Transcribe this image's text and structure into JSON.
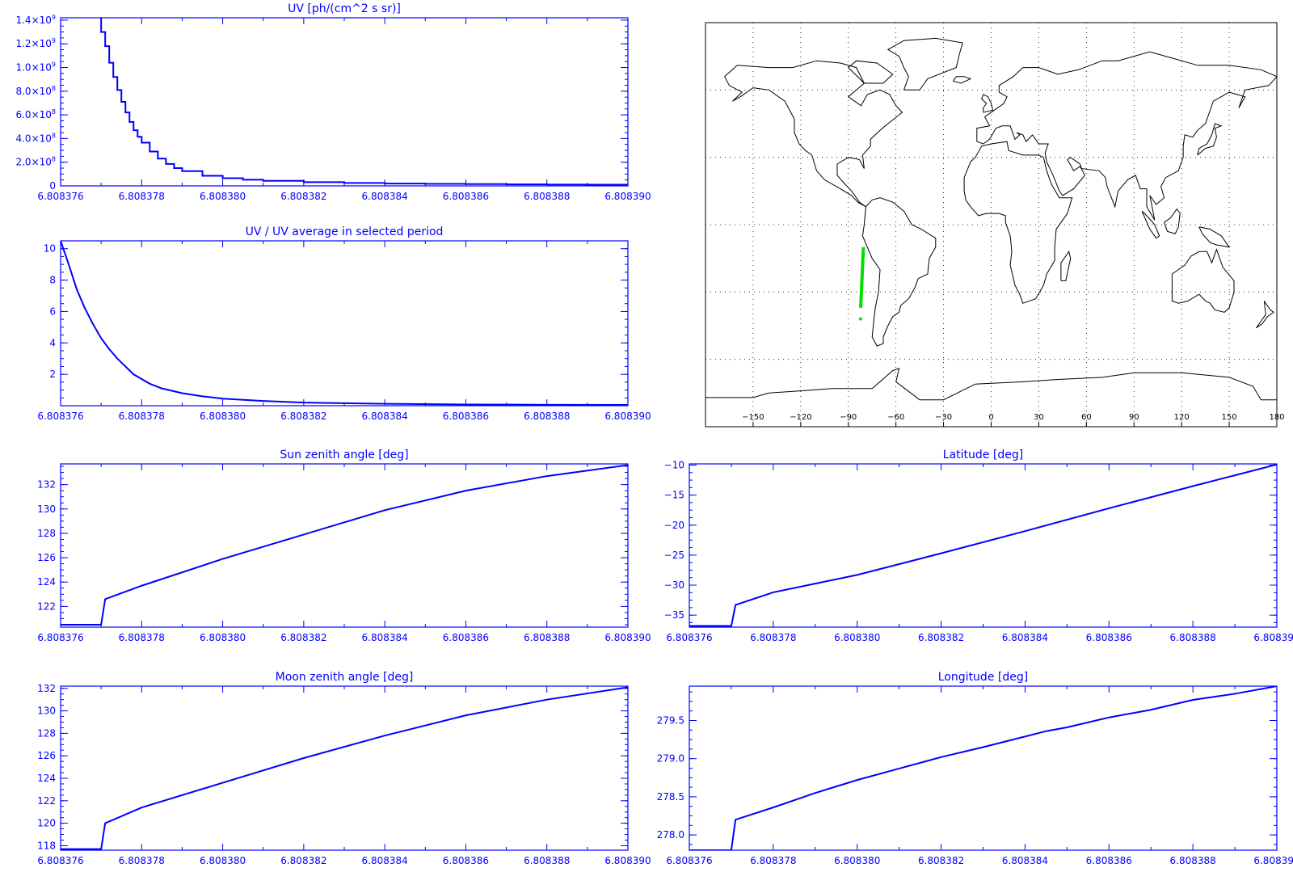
{
  "colors": {
    "axis": "#0000ff",
    "line": "#0000ff",
    "map": "#000000",
    "track": "#00e000",
    "grid": "#000000"
  },
  "x_tick_labels": [
    "6.808376",
    "6.808378",
    "6.808380",
    "6.808382",
    "6.808384",
    "6.808386",
    "6.808388",
    "6.808390"
  ],
  "chart_data": [
    {
      "id": "uv",
      "type": "line",
      "title": "UV [ph/(cm^2 s sr)]",
      "xlim": [
        6.808376,
        6.80839
      ],
      "ylim": [
        0,
        1420000000.0
      ],
      "yticks": [
        0,
        200000000.0,
        400000000.0,
        600000000.0,
        800000000.0,
        1000000000.0,
        1200000000.0,
        1400000000.0
      ],
      "ytick_labels": [
        {
          "mantissa": "0",
          "exp": ""
        },
        {
          "mantissa": "2.0×10",
          "exp": "8"
        },
        {
          "mantissa": "4.0×10",
          "exp": "8"
        },
        {
          "mantissa": "6.0×10",
          "exp": "8"
        },
        {
          "mantissa": "8.0×10",
          "exp": "8"
        },
        {
          "mantissa": "1.0×10",
          "exp": "9"
        },
        {
          "mantissa": "1.2×10",
          "exp": "9"
        },
        {
          "mantissa": "1.4×10",
          "exp": "9"
        }
      ],
      "steps": true,
      "x": [
        6.808377,
        6.8083771,
        6.8083772,
        6.8083773,
        6.8083774,
        6.8083775,
        6.8083776,
        6.8083777,
        6.8083778,
        6.8083779,
        6.808378,
        6.8083782,
        6.8083784,
        6.8083786,
        6.8083788,
        6.808379,
        6.8083795,
        6.80838,
        6.8083805,
        6.808381,
        6.808382,
        6.808383,
        6.808384,
        6.808385,
        6.808386,
        6.808387,
        6.808388,
        6.808389,
        6.80839
      ],
      "y": [
        1300000000.0,
        1180000000.0,
        1040000000.0,
        920000000.0,
        810000000.0,
        710000000.0,
        620000000.0,
        540000000.0,
        470000000.0,
        415000000.0,
        365000000.0,
        290000000.0,
        230000000.0,
        185000000.0,
        150000000.0,
        125000000.0,
        85000000.0,
        65000000.0,
        52000000.0,
        43000000.0,
        32000000.0,
        25000000.0,
        20000000.0,
        17000000.0,
        15000000.0,
        13000000.0,
        11000000.0,
        10000000.0,
        9000000.0
      ]
    },
    {
      "id": "uvratio",
      "type": "line",
      "title": "UV / UV average in selected period",
      "xlim": [
        6.808376,
        6.80839
      ],
      "ylim": [
        0,
        10.5
      ],
      "yticks": [
        2,
        4,
        6,
        8,
        10
      ],
      "ytick_labels": [
        {
          "mantissa": "2",
          "exp": ""
        },
        {
          "mantissa": "4",
          "exp": ""
        },
        {
          "mantissa": "6",
          "exp": ""
        },
        {
          "mantissa": "8",
          "exp": ""
        },
        {
          "mantissa": "10",
          "exp": ""
        }
      ],
      "steps": false,
      "x": [
        6.808376,
        6.8083762,
        6.8083764,
        6.8083766,
        6.8083768,
        6.808377,
        6.8083772,
        6.8083774,
        6.8083776,
        6.8083778,
        6.808378,
        6.8083782,
        6.8083785,
        6.808379,
        6.8083795,
        6.80838,
        6.808381,
        6.808382,
        6.808384,
        6.808386,
        6.808388,
        6.80839
      ],
      "y": [
        10.5,
        9.0,
        7.4,
        6.2,
        5.2,
        4.3,
        3.6,
        3.0,
        2.5,
        2.0,
        1.7,
        1.4,
        1.1,
        0.8,
        0.6,
        0.45,
        0.3,
        0.2,
        0.12,
        0.08,
        0.06,
        0.05
      ]
    },
    {
      "id": "sza",
      "type": "line",
      "title": "Sun zenith angle [deg]",
      "xlim": [
        6.808376,
        6.80839
      ],
      "ylim": [
        120.3,
        133.7
      ],
      "yticks": [
        122,
        124,
        126,
        128,
        130,
        132
      ],
      "ytick_labels": [
        {
          "mantissa": "122",
          "exp": ""
        },
        {
          "mantissa": "124",
          "exp": ""
        },
        {
          "mantissa": "126",
          "exp": ""
        },
        {
          "mantissa": "128",
          "exp": ""
        },
        {
          "mantissa": "130",
          "exp": ""
        },
        {
          "mantissa": "132",
          "exp": ""
        }
      ],
      "steps": false,
      "x": [
        6.808376,
        6.808377,
        6.8083771,
        6.808378,
        6.80838,
        6.808382,
        6.808384,
        6.808386,
        6.808388,
        6.80839
      ],
      "y": [
        120.5,
        120.5,
        122.6,
        123.7,
        125.9,
        127.9,
        129.9,
        131.5,
        132.7,
        133.6
      ]
    },
    {
      "id": "lat",
      "type": "line",
      "title": "Latitude [deg]",
      "xlim": [
        6.808376,
        6.80839
      ],
      "ylim": [
        -37.0,
        -9.8
      ],
      "yticks": [
        -35,
        -30,
        -25,
        -20,
        -15,
        -10
      ],
      "ytick_labels": [
        {
          "mantissa": "−35",
          "exp": ""
        },
        {
          "mantissa": "−30",
          "exp": ""
        },
        {
          "mantissa": "−25",
          "exp": ""
        },
        {
          "mantissa": "−20",
          "exp": ""
        },
        {
          "mantissa": "−15",
          "exp": ""
        },
        {
          "mantissa": "−10",
          "exp": ""
        }
      ],
      "steps": false,
      "x": [
        6.808376,
        6.808377,
        6.8083771,
        6.808378,
        6.80838,
        6.808382,
        6.808384,
        6.808386,
        6.808388,
        6.80839
      ],
      "y": [
        -36.8,
        -36.8,
        -33.3,
        -31.2,
        -28.3,
        -24.7,
        -21.0,
        -17.2,
        -13.5,
        -9.9
      ]
    },
    {
      "id": "mza",
      "type": "line",
      "title": "Moon zenith angle [deg]",
      "xlim": [
        6.808376,
        6.80839
      ],
      "ylim": [
        117.6,
        132.2
      ],
      "yticks": [
        118,
        120,
        122,
        124,
        126,
        128,
        130,
        132
      ],
      "ytick_labels": [
        {
          "mantissa": "118",
          "exp": ""
        },
        {
          "mantissa": "120",
          "exp": ""
        },
        {
          "mantissa": "122",
          "exp": ""
        },
        {
          "mantissa": "124",
          "exp": ""
        },
        {
          "mantissa": "126",
          "exp": ""
        },
        {
          "mantissa": "128",
          "exp": ""
        },
        {
          "mantissa": "130",
          "exp": ""
        },
        {
          "mantissa": "132",
          "exp": ""
        }
      ],
      "steps": false,
      "x": [
        6.808376,
        6.808377,
        6.8083771,
        6.808378,
        6.80838,
        6.808382,
        6.808384,
        6.808386,
        6.808388,
        6.80839
      ],
      "y": [
        117.7,
        117.7,
        120.0,
        121.4,
        123.6,
        125.8,
        127.8,
        129.6,
        131.0,
        132.1
      ]
    },
    {
      "id": "lon",
      "type": "line",
      "title": "Longitude [deg]",
      "xlim": [
        6.808376,
        6.80839
      ],
      "ylim": [
        277.8,
        279.95
      ],
      "yticks": [
        278.0,
        278.5,
        279.0,
        279.5
      ],
      "ytick_labels": [
        {
          "mantissa": "278.0",
          "exp": ""
        },
        {
          "mantissa": "278.5",
          "exp": ""
        },
        {
          "mantissa": "279.0",
          "exp": ""
        },
        {
          "mantissa": "279.5",
          "exp": ""
        }
      ],
      "steps": false,
      "x": [
        6.808376,
        6.808377,
        6.8083771,
        6.808378,
        6.808379,
        6.80838,
        6.8083808,
        6.808381,
        6.808382,
        6.808383,
        6.8083845,
        6.808385,
        6.808386,
        6.808387,
        6.808388,
        6.808389,
        6.80839
      ],
      "y": [
        277.8,
        277.8,
        278.2,
        278.36,
        278.55,
        278.72,
        278.84,
        278.87,
        279.02,
        279.15,
        279.36,
        279.41,
        279.54,
        279.64,
        279.77,
        279.85,
        279.95
      ]
    }
  ],
  "map": {
    "type": "map",
    "lon_range": [
      -180,
      180
    ],
    "lat_range": [
      -90,
      90
    ],
    "lon_tick_labels": [
      {
        "value": -150,
        "label": "−150"
      },
      {
        "value": -120,
        "label": "−120"
      },
      {
        "value": -90,
        "label": "−90"
      },
      {
        "value": -60,
        "label": "−60"
      },
      {
        "value": -30,
        "label": "−30"
      },
      {
        "value": 0,
        "label": "0"
      },
      {
        "value": 30,
        "label": "30"
      },
      {
        "value": 60,
        "label": "60"
      },
      {
        "value": 90,
        "label": "90"
      },
      {
        "value": 120,
        "label": "120"
      },
      {
        "value": 150,
        "label": "150"
      },
      {
        "value": 180,
        "label": "180"
      }
    ],
    "grid_lats": [
      60,
      30,
      0,
      -30,
      -60
    ],
    "track": {
      "lon": [
        -80.5,
        -82.2
      ],
      "lat": [
        -10,
        -37
      ]
    },
    "track_dot": {
      "lon": -82.3,
      "lat": -42
    }
  }
}
